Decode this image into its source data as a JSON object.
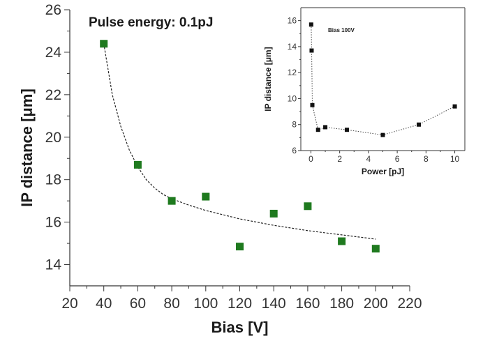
{
  "chart_data": [
    {
      "type": "scatter",
      "title": "",
      "annotation": "Pulse energy: 0.1pJ",
      "xlabel": "Bias [V]",
      "ylabel": "IP distance [μm]",
      "xlim": [
        20,
        220
      ],
      "ylim": [
        13,
        26
      ],
      "xticks": [
        20,
        40,
        60,
        80,
        100,
        120,
        140,
        160,
        180,
        200,
        220
      ],
      "yticks": [
        14,
        16,
        18,
        20,
        22,
        24,
        26
      ],
      "series": [
        {
          "x": [
            40,
            60,
            80,
            100,
            120,
            140,
            160,
            180,
            200
          ],
          "y": [
            24.4,
            18.7,
            17.0,
            17.2,
            14.85,
            16.4,
            16.75,
            15.1,
            14.75
          ],
          "color": "#1f7a1f",
          "marker": "square"
        }
      ],
      "fit": {
        "style": "dashed",
        "x": [
          40,
          45,
          50,
          55,
          60,
          65,
          70,
          75,
          80,
          90,
          100,
          120,
          140,
          160,
          180,
          200
        ],
        "y": [
          24.4,
          22.0,
          20.5,
          19.4,
          18.6,
          18.0,
          17.6,
          17.3,
          17.1,
          16.8,
          16.55,
          16.15,
          15.85,
          15.6,
          15.4,
          15.2
        ]
      },
      "grid": false,
      "legend": "none"
    },
    {
      "type": "line",
      "title": "",
      "annotation": "Bias 100V",
      "xlabel": "Power [pJ]",
      "ylabel": "IP distance [μm]",
      "xlim": [
        -0.7,
        10.7
      ],
      "ylim": [
        6,
        17
      ],
      "xticks": [
        0,
        2,
        4,
        6,
        8,
        10
      ],
      "yticks": [
        6,
        8,
        10,
        12,
        14,
        16
      ],
      "series": [
        {
          "x": [
            0.02,
            0.05,
            0.1,
            0.5,
            1.0,
            2.5,
            5.0,
            7.5,
            10.0
          ],
          "y": [
            15.7,
            13.7,
            9.5,
            7.6,
            7.8,
            7.6,
            7.2,
            8.0,
            9.4
          ],
          "color": "#111111",
          "marker": "square",
          "line": "dotted"
        }
      ],
      "grid": false,
      "legend": "none"
    }
  ]
}
